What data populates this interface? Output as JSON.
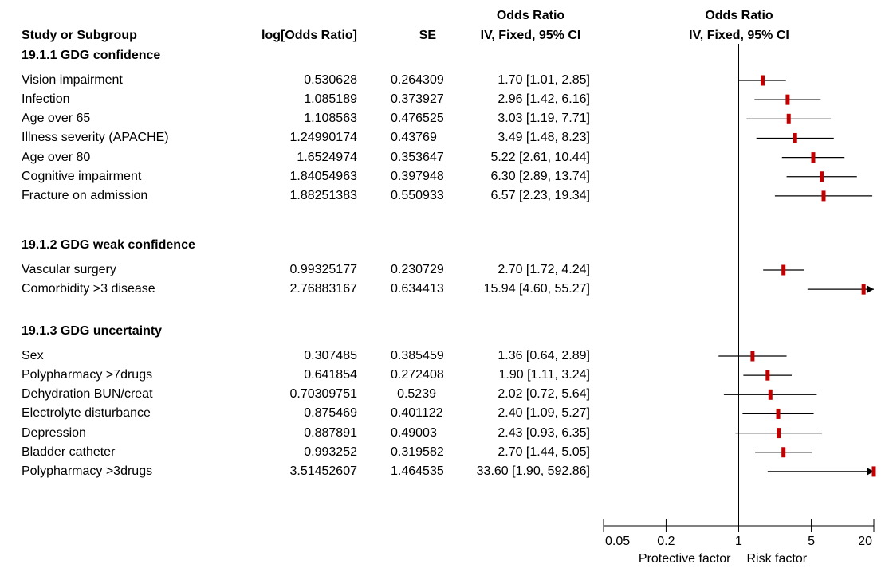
{
  "headers": {
    "study": "Study or Subgroup",
    "log_or": "log[Odds Ratio]",
    "se": "SE",
    "or_top": "Odds Ratio",
    "or_method": "IV, Fixed, 95% CI",
    "plot_top": "Odds Ratio",
    "plot_method": "IV, Fixed, 95% CI"
  },
  "groups": [
    {
      "title": "19.1.1 GDG confidence",
      "studies": [
        {
          "name": "Vision impairment",
          "log_or": "0.530628",
          "se": "0.264309",
          "ci_text": "1.70 [1.01, 2.85]"
        },
        {
          "name": "Infection",
          "log_or": "1.085189",
          "se": "0.373927",
          "ci_text": "2.96 [1.42, 6.16]"
        },
        {
          "name": "Age over 65",
          "log_or": "1.108563",
          "se": "0.476525",
          "ci_text": "3.03 [1.19, 7.71]"
        },
        {
          "name": "Illness severity (APACHE)",
          "log_or": "1.24990174",
          "se": "0.43769",
          "ci_text": "3.49 [1.48, 8.23]"
        },
        {
          "name": "Age over 80",
          "log_or": "1.6524974",
          "se": "0.353647",
          "ci_text": "5.22 [2.61, 10.44]"
        },
        {
          "name": "Cognitive impairment",
          "log_or": "1.84054963",
          "se": "0.397948",
          "ci_text": "6.30 [2.89, 13.74]"
        },
        {
          "name": "Fracture on admission",
          "log_or": "1.88251383",
          "se": "0.550933",
          "ci_text": "6.57 [2.23, 19.34]"
        }
      ]
    },
    {
      "title": "19.1.2 GDG weak confidence",
      "studies": [
        {
          "name": "Vascular surgery",
          "log_or": "0.99325177",
          "se": "0.230729",
          "ci_text": "2.70 [1.72, 4.24]"
        },
        {
          "name": "Comorbidity >3 disease",
          "log_or": "2.76883167",
          "se": "0.634413",
          "ci_text": "15.94 [4.60, 55.27]"
        }
      ]
    },
    {
      "title": "19.1.3 GDG uncertainty",
      "studies": [
        {
          "name": "Sex",
          "log_or": "0.307485",
          "se": "0.385459",
          "ci_text": "1.36 [0.64, 2.89]"
        },
        {
          "name": "Polypharmacy >7drugs",
          "log_or": "0.641854",
          "se": "0.272408",
          "ci_text": "1.90 [1.11, 3.24]"
        },
        {
          "name": "Dehydration BUN/creat",
          "log_or": "0.70309751",
          "se": "0.5239",
          "ci_text": "2.02 [0.72, 5.64]"
        },
        {
          "name": "Electrolyte disturbance",
          "log_or": "0.875469",
          "se": "0.401122",
          "ci_text": "2.40 [1.09, 5.27]"
        },
        {
          "name": "Depression",
          "log_or": "0.887891",
          "se": "0.49003",
          "ci_text": "2.43 [0.93, 6.35]"
        },
        {
          "name": "Bladder catheter",
          "log_or": "0.993252",
          "se": "0.319582",
          "ci_text": "2.70 [1.44, 5.05]"
        },
        {
          "name": "Polypharmacy >3drugs",
          "log_or": "3.51452607",
          "se": "1.464535",
          "ci_text": "33.60 [1.90, 592.86]"
        }
      ]
    }
  ],
  "chart_data": {
    "type": "forest",
    "scale": "log",
    "xlim": [
      0.05,
      20
    ],
    "ticks": [
      "0.05",
      "0.2",
      "1",
      "5",
      "20"
    ],
    "null_line": 1,
    "left_label": "Protective factor",
    "right_label": "Risk factor",
    "colors": {
      "point": "#c00000",
      "line": "#000000"
    },
    "rows": [
      {
        "or": 1.7,
        "lo": 1.01,
        "hi": 2.85
      },
      {
        "or": 2.96,
        "lo": 1.42,
        "hi": 6.16
      },
      {
        "or": 3.03,
        "lo": 1.19,
        "hi": 7.71
      },
      {
        "or": 3.49,
        "lo": 1.48,
        "hi": 8.23
      },
      {
        "or": 5.22,
        "lo": 2.61,
        "hi": 10.44
      },
      {
        "or": 6.3,
        "lo": 2.89,
        "hi": 13.74
      },
      {
        "or": 6.57,
        "lo": 2.23,
        "hi": 19.34
      },
      {
        "or": 2.7,
        "lo": 1.72,
        "hi": 4.24
      },
      {
        "or": 15.94,
        "lo": 4.6,
        "hi": 55.27
      },
      {
        "or": 1.36,
        "lo": 0.64,
        "hi": 2.89
      },
      {
        "or": 1.9,
        "lo": 1.11,
        "hi": 3.24
      },
      {
        "or": 2.02,
        "lo": 0.72,
        "hi": 5.64
      },
      {
        "or": 2.4,
        "lo": 1.09,
        "hi": 5.27
      },
      {
        "or": 2.43,
        "lo": 0.93,
        "hi": 6.35
      },
      {
        "or": 2.7,
        "lo": 1.44,
        "hi": 5.05
      },
      {
        "or": 33.6,
        "lo": 1.9,
        "hi": 592.86
      }
    ]
  }
}
